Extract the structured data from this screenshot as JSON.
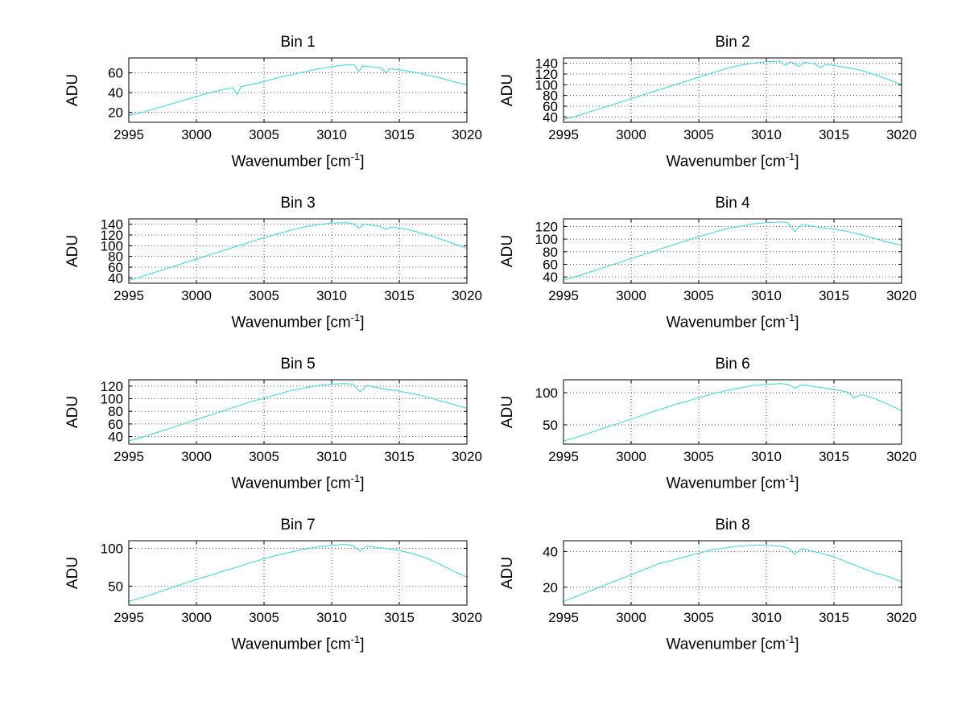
{
  "figure": {
    "background": "#ffffff",
    "line_color": "#55dcdc",
    "grid_color": "#555555",
    "axis_color": "#000000",
    "ylabel": "ADU",
    "xlabel_parts": {
      "base": "Wavenumber [cm",
      "sup": "-1",
      "end": "]"
    }
  },
  "chart_data": [
    {
      "type": "line",
      "title": "Bin 1",
      "xlabel": "Wavenumber [cm^-1]",
      "ylabel": "ADU",
      "xlim": [
        2995,
        3020
      ],
      "ylim": [
        10,
        75
      ],
      "xticks": [
        2995,
        3000,
        3005,
        3010,
        3015,
        3020
      ],
      "yticks": [
        20,
        40,
        60
      ],
      "x": [
        2995,
        2996,
        2997,
        2998,
        2999,
        3000,
        3001,
        3002,
        3002.7,
        3003,
        3003.3,
        3004,
        3005,
        3006,
        3007,
        3008,
        3009,
        3010,
        3011,
        3011.7,
        3012,
        3012.3,
        3013,
        3013.7,
        3014,
        3014.3,
        3015,
        3016,
        3017,
        3018,
        3019,
        3020
      ],
      "y": [
        17,
        20,
        24,
        28,
        32,
        36,
        40,
        43,
        45,
        38,
        46,
        48,
        51,
        55,
        58,
        61,
        64,
        66,
        68,
        68,
        61,
        67,
        66,
        65,
        60,
        64,
        63,
        61,
        58,
        55,
        51,
        48
      ]
    },
    {
      "type": "line",
      "title": "Bin 2",
      "xlabel": "Wavenumber [cm^-1]",
      "ylabel": "ADU",
      "xlim": [
        2995,
        3020
      ],
      "ylim": [
        30,
        150
      ],
      "xticks": [
        2995,
        3000,
        3005,
        3010,
        3015,
        3020
      ],
      "yticks": [
        40,
        60,
        80,
        100,
        120,
        140
      ],
      "x": [
        2995,
        2996,
        2997,
        2998,
        2999,
        3000,
        3001,
        3002,
        3003,
        3004,
        3005,
        3006,
        3007,
        3008,
        3009,
        3010,
        3011,
        3011.4,
        3011.8,
        3012.4,
        3012.8,
        3013.6,
        3014,
        3014.4,
        3015,
        3016,
        3017,
        3018,
        3019,
        3020
      ],
      "y": [
        35,
        42,
        50,
        58,
        66,
        74,
        82,
        90,
        98,
        106,
        114,
        122,
        130,
        136,
        140,
        143,
        144,
        136,
        143,
        134,
        142,
        139,
        132,
        138,
        136,
        132,
        127,
        119,
        110,
        100
      ]
    },
    {
      "type": "line",
      "title": "Bin 3",
      "xlabel": "Wavenumber [cm^-1]",
      "ylabel": "ADU",
      "xlim": [
        2995,
        3020
      ],
      "ylim": [
        30,
        150
      ],
      "xticks": [
        2995,
        3000,
        3005,
        3010,
        3015,
        3020
      ],
      "yticks": [
        40,
        60,
        80,
        100,
        120,
        140
      ],
      "x": [
        2995,
        2996,
        2997,
        2998,
        2999,
        3000,
        3001,
        3002,
        3003,
        3004,
        3005,
        3006,
        3007,
        3008,
        3009,
        3010,
        3011,
        3011.6,
        3012,
        3012.4,
        3013,
        3013.6,
        3014,
        3014.4,
        3015,
        3016,
        3017,
        3018,
        3019,
        3020
      ],
      "y": [
        35,
        43,
        51,
        59,
        67,
        75,
        83,
        91,
        99,
        107,
        115,
        122,
        129,
        135,
        139,
        142,
        143,
        141,
        133,
        140,
        138,
        136,
        130,
        135,
        133,
        128,
        121,
        113,
        104,
        95
      ]
    },
    {
      "type": "line",
      "title": "Bin 4",
      "xlabel": "Wavenumber [cm^-1]",
      "ylabel": "ADU",
      "xlim": [
        2995,
        3020
      ],
      "ylim": [
        30,
        132
      ],
      "xticks": [
        2995,
        3000,
        3005,
        3010,
        3015,
        3020
      ],
      "yticks": [
        40,
        60,
        80,
        100,
        120
      ],
      "x": [
        2995,
        2996,
        2997,
        2998,
        2999,
        3000,
        3001,
        3002,
        3003,
        3004,
        3005,
        3006,
        3007,
        3008,
        3009,
        3010,
        3011,
        3011.6,
        3012.1,
        3012.6,
        3013,
        3014,
        3015,
        3016,
        3017,
        3018,
        3019,
        3020
      ],
      "y": [
        35,
        41,
        48,
        55,
        62,
        69,
        76,
        83,
        90,
        97,
        104,
        110,
        116,
        120,
        124,
        126,
        127,
        126,
        112,
        123,
        122,
        118,
        116,
        112,
        107,
        101,
        95,
        90
      ]
    },
    {
      "type": "line",
      "title": "Bin 5",
      "xlabel": "Wavenumber [cm^-1]",
      "ylabel": "ADU",
      "xlim": [
        2995,
        3020
      ],
      "ylim": [
        28,
        130
      ],
      "xticks": [
        2995,
        3000,
        3005,
        3010,
        3015,
        3020
      ],
      "yticks": [
        40,
        60,
        80,
        100,
        120
      ],
      "x": [
        2995,
        2996,
        2997,
        2998,
        2999,
        3000,
        3001,
        3002,
        3003,
        3004,
        3005,
        3006,
        3007,
        3008,
        3009,
        3010,
        3011,
        3011.6,
        3012.1,
        3012.6,
        3013,
        3014,
        3015,
        3016,
        3017,
        3018,
        3019,
        3020
      ],
      "y": [
        33,
        39,
        46,
        53,
        60,
        67,
        74,
        81,
        88,
        95,
        101,
        107,
        113,
        117,
        121,
        123,
        124,
        123,
        111,
        121,
        119,
        115,
        112,
        108,
        103,
        97,
        91,
        85
      ]
    },
    {
      "type": "line",
      "title": "Bin 6",
      "xlabel": "Wavenumber [cm^-1]",
      "ylabel": "ADU",
      "xlim": [
        2995,
        3020
      ],
      "ylim": [
        20,
        120
      ],
      "xticks": [
        2995,
        3000,
        3005,
        3010,
        3015,
        3020
      ],
      "yticks": [
        50,
        100
      ],
      "x": [
        2995,
        2996,
        2997,
        2998,
        2999,
        3000,
        3001,
        3002,
        3003,
        3004,
        3005,
        3006,
        3007,
        3008,
        3009,
        3010,
        3011,
        3011.6,
        3012.1,
        3012.6,
        3013,
        3014,
        3015,
        3016,
        3016.5,
        3017,
        3017.4,
        3018,
        3019,
        3020
      ],
      "y": [
        25,
        31,
        38,
        45,
        52,
        59,
        66,
        73,
        80,
        86,
        92,
        98,
        103,
        107,
        111,
        113,
        114,
        113,
        107,
        112,
        111,
        108,
        105,
        101,
        92,
        97,
        95,
        91,
        82,
        72
      ]
    },
    {
      "type": "line",
      "title": "Bin 7",
      "xlabel": "Wavenumber [cm^-1]",
      "ylabel": "ADU",
      "xlim": [
        2995,
        3020
      ],
      "ylim": [
        25,
        110
      ],
      "xticks": [
        2995,
        3000,
        3005,
        3010,
        3015,
        3020
      ],
      "yticks": [
        50,
        100
      ],
      "x": [
        2995,
        2996,
        2997,
        2998,
        2999,
        3000,
        3001,
        3002,
        3003,
        3004,
        3005,
        3006,
        3007,
        3008,
        3009,
        3010,
        3011,
        3011.6,
        3012.1,
        3012.6,
        3013,
        3014,
        3015,
        3016,
        3017,
        3018,
        3019,
        3020
      ],
      "y": [
        30,
        35,
        41,
        47,
        53,
        59,
        64,
        70,
        75,
        81,
        86,
        91,
        95,
        99,
        102,
        104,
        105,
        104,
        96,
        103,
        102,
        100,
        97,
        93,
        87,
        79,
        70,
        62
      ]
    },
    {
      "type": "line",
      "title": "Bin 8",
      "xlabel": "Wavenumber [cm^-1]",
      "ylabel": "ADU",
      "xlim": [
        2995,
        3020
      ],
      "ylim": [
        10,
        46
      ],
      "xticks": [
        2995,
        3000,
        3005,
        3010,
        3015,
        3020
      ],
      "yticks": [
        20,
        40
      ],
      "x": [
        2995,
        2996,
        2997,
        2998,
        2999,
        3000,
        3001,
        3002,
        3003,
        3004,
        3005,
        3006,
        3007,
        3008,
        3009,
        3010,
        3011,
        3011.6,
        3012.1,
        3012.6,
        3013,
        3014,
        3015,
        3016,
        3017,
        3018,
        3019,
        3020
      ],
      "y": [
        12,
        15,
        18,
        21,
        24,
        27,
        30,
        33,
        35,
        37,
        39,
        41,
        42,
        43,
        43.5,
        43.5,
        43,
        42,
        38.5,
        41.5,
        41,
        39,
        37,
        34,
        31,
        28,
        26,
        23
      ]
    }
  ]
}
